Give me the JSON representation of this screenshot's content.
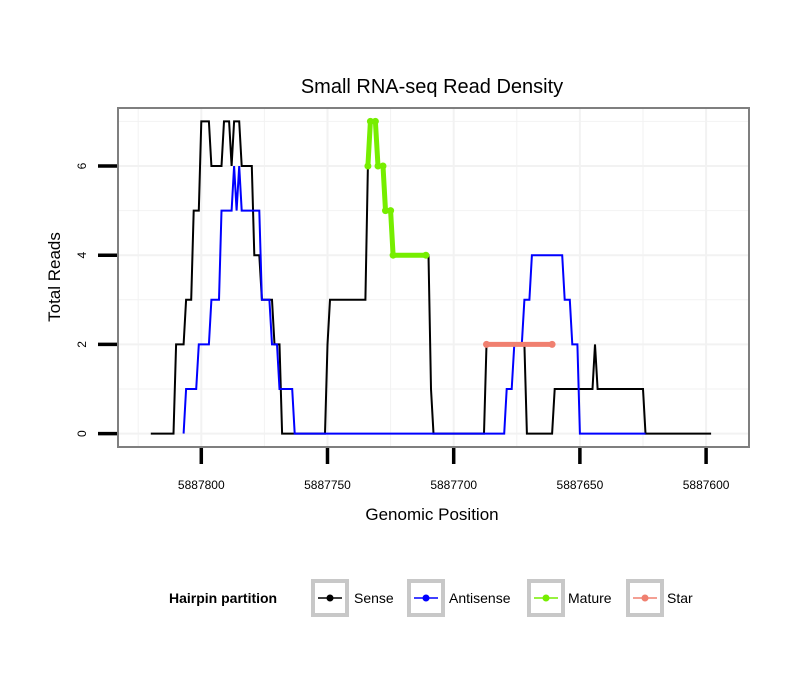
{
  "chart_data": {
    "type": "line",
    "title": "Small RNA-seq Read Density",
    "xlabel": "Genomic Position",
    "ylabel": "Total Reads",
    "xlim": [
      5887833,
      5887583
    ],
    "x_reversed": true,
    "ylim": [
      -0.3,
      7.3
    ],
    "x_ticks": [
      5887800,
      5887750,
      5887700,
      5887650,
      5887600
    ],
    "x_tick_labels": [
      "5887800",
      "5887750",
      "5887700",
      "5887650",
      "5887600"
    ],
    "y_ticks": [
      0,
      2,
      4,
      6
    ],
    "y_tick_labels": [
      "0",
      "2",
      "4",
      "6"
    ],
    "grid": true,
    "legend": {
      "title": "Hairpin partition",
      "position": "bottom",
      "entries": [
        "Sense",
        "Antisense",
        "Mature",
        "Star"
      ]
    },
    "series": [
      {
        "name": "Sense",
        "color": "#000000",
        "points": [
          [
            5887820,
            0
          ],
          [
            5887811,
            0
          ],
          [
            5887810,
            2
          ],
          [
            5887807,
            2
          ],
          [
            5887806,
            3
          ],
          [
            5887804,
            3
          ],
          [
            5887803,
            5
          ],
          [
            5887801,
            5
          ],
          [
            5887800,
            7
          ],
          [
            5887797,
            7
          ],
          [
            5887796,
            6
          ],
          [
            5887792,
            6
          ],
          [
            5887791,
            7
          ],
          [
            5887789,
            7
          ],
          [
            5887788,
            6
          ],
          [
            5887787,
            7
          ],
          [
            5887785,
            7
          ],
          [
            5887784,
            6
          ],
          [
            5887780,
            6
          ],
          [
            5887779,
            4
          ],
          [
            5887777,
            4
          ],
          [
            5887776,
            3
          ],
          [
            5887772,
            3
          ],
          [
            5887771,
            2
          ],
          [
            5887769,
            2
          ],
          [
            5887768,
            0
          ],
          [
            5887751,
            0
          ],
          [
            5887750,
            2
          ],
          [
            5887749,
            3
          ],
          [
            5887735,
            3
          ],
          [
            5887734,
            6
          ],
          [
            5887733,
            7
          ],
          [
            5887731,
            7
          ],
          [
            5887730,
            6
          ],
          [
            5887728,
            6
          ],
          [
            5887727,
            5
          ],
          [
            5887725,
            5
          ],
          [
            5887724,
            4
          ],
          [
            5887710,
            4
          ],
          [
            5887709,
            1
          ],
          [
            5887708,
            0
          ],
          [
            5887688,
            0
          ],
          [
            5887687,
            2
          ],
          [
            5887672,
            2
          ],
          [
            5887671,
            0
          ],
          [
            5887661,
            0
          ],
          [
            5887660,
            1
          ],
          [
            5887645,
            1
          ],
          [
            5887644,
            2
          ],
          [
            5887643,
            1
          ],
          [
            5887625,
            1
          ],
          [
            5887624,
            0
          ],
          [
            5887598,
            0
          ]
        ]
      },
      {
        "name": "Antisense",
        "color": "#0000ff",
        "points": [
          [
            5887807,
            0
          ],
          [
            5887806,
            1
          ],
          [
            5887802,
            1
          ],
          [
            5887801,
            2
          ],
          [
            5887797,
            2
          ],
          [
            5887796,
            3
          ],
          [
            5887793,
            3
          ],
          [
            5887792,
            5
          ],
          [
            5887788,
            5
          ],
          [
            5887787,
            6
          ],
          [
            5887786,
            5
          ],
          [
            5887785,
            6
          ],
          [
            5887784,
            5
          ],
          [
            5887777,
            5
          ],
          [
            5887776,
            3
          ],
          [
            5887773,
            3
          ],
          [
            5887772,
            2
          ],
          [
            5887770,
            2
          ],
          [
            5887769,
            1
          ],
          [
            5887764,
            1
          ],
          [
            5887763,
            0
          ],
          [
            5887680,
            0
          ],
          [
            5887679,
            1
          ],
          [
            5887677,
            1
          ],
          [
            5887676,
            2
          ],
          [
            5887673,
            2
          ],
          [
            5887672,
            3
          ],
          [
            5887670,
            3
          ],
          [
            5887669,
            4
          ],
          [
            5887657,
            4
          ],
          [
            5887656,
            3
          ],
          [
            5887654,
            3
          ],
          [
            5887653,
            2
          ],
          [
            5887651,
            2
          ],
          [
            5887650,
            0
          ],
          [
            5887624,
            0
          ]
        ]
      },
      {
        "name": "Mature",
        "color": "#76ee00",
        "points": [
          [
            5887734,
            6
          ],
          [
            5887733,
            7
          ],
          [
            5887731,
            7
          ],
          [
            5887730,
            6
          ],
          [
            5887728,
            6
          ],
          [
            5887727,
            5
          ],
          [
            5887725,
            5
          ],
          [
            5887724,
            4
          ],
          [
            5887711,
            4
          ]
        ]
      },
      {
        "name": "Star",
        "color": "#f08070",
        "points": [
          [
            5887687,
            2
          ],
          [
            5887661,
            2
          ]
        ]
      }
    ]
  }
}
